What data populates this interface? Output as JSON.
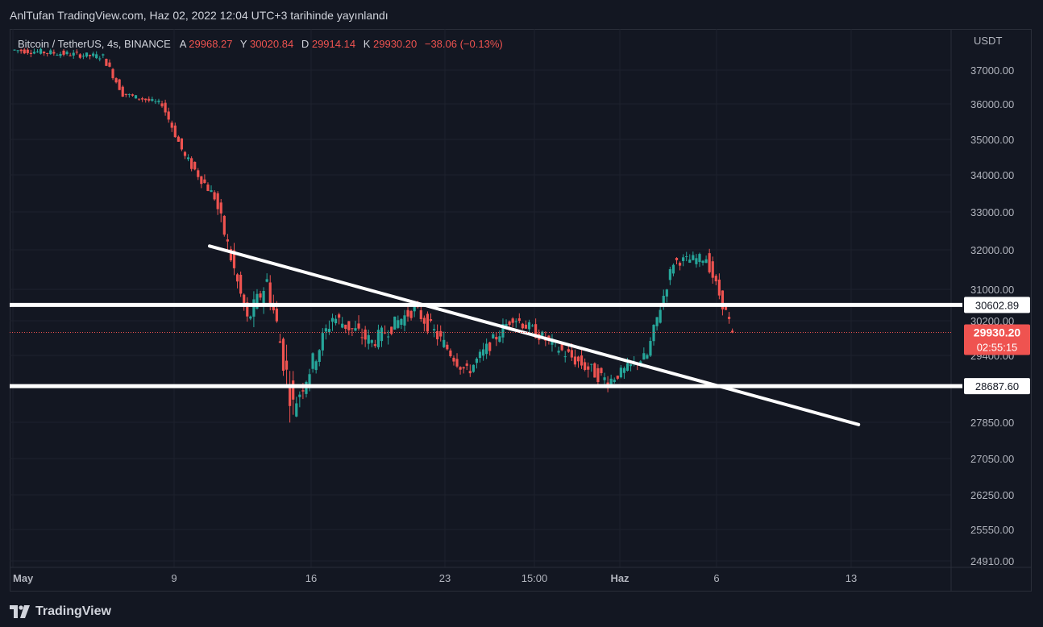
{
  "header": {
    "text": "AnlTufan TradingView.com, Haz 02, 2022 12:04 UTC+3 tarihinde yayınlandı"
  },
  "legend": {
    "symbol": "Bitcoin / TetherUS, 4s, BINANCE",
    "open_label": "A",
    "open": "29968.27",
    "high_label": "Y",
    "high": "30020.84",
    "low_label": "D",
    "low": "29914.14",
    "close_label": "K",
    "close": "29930.20",
    "change": "−38.06 (−0.13%)"
  },
  "footer": {
    "brand": "TradingView"
  },
  "colors": {
    "background": "#131722",
    "grid": "#1e222d",
    "up": "#26a69a",
    "down": "#ef5350",
    "line": "#ffffff",
    "price_tag": "#ef5350",
    "axis_text": "#b2b5be"
  },
  "chart_data": {
    "type": "candlestick",
    "currency_label": "USDT",
    "y_ticks": [
      "37000.00",
      "36000.00",
      "35000.00",
      "34000.00",
      "33000.00",
      "32000.00",
      "31000.00",
      "30200.00",
      "29400.00",
      "27850.00",
      "27050.00",
      "26250.00",
      "25550.00",
      "24910.00"
    ],
    "x_ticks": [
      "May",
      "9",
      "16",
      "23",
      "15:00",
      "Haz",
      "6",
      "13"
    ],
    "x_ticks_bold": [
      "May",
      "Haz"
    ],
    "horizontal_levels": [
      {
        "label": "30602.89",
        "value": 30602.89
      },
      {
        "label": "28687.60",
        "value": 28687.6
      }
    ],
    "trendline": {
      "start": {
        "date": "2022-05-11",
        "price": 32100
      },
      "end": {
        "date": "2022-06-13",
        "price": 27800
      }
    },
    "last_price": {
      "label": "29930.20",
      "countdown": "02:55:15"
    },
    "segments": [
      {
        "from": 37600,
        "to": 37400,
        "count": 28,
        "noise": 180
      },
      {
        "from": 37400,
        "to": 36300,
        "count": 6,
        "noise": 200
      },
      {
        "from": 36300,
        "to": 36000,
        "count": 12,
        "noise": 150
      },
      {
        "from": 36000,
        "to": 34500,
        "count": 7,
        "noise": 220
      },
      {
        "from": 34500,
        "to": 33400,
        "count": 9,
        "noise": 280
      },
      {
        "from": 33400,
        "to": 30200,
        "count": 10,
        "noise": 450
      },
      {
        "from": 30200,
        "to": 31200,
        "count": 6,
        "noise": 500
      },
      {
        "from": 31200,
        "to": 28200,
        "count": 8,
        "noise": 700
      },
      {
        "from": 28200,
        "to": 30300,
        "count": 12,
        "noise": 450
      },
      {
        "from": 30300,
        "to": 29700,
        "count": 12,
        "noise": 400
      },
      {
        "from": 29700,
        "to": 30500,
        "count": 13,
        "noise": 350
      },
      {
        "from": 30500,
        "to": 29000,
        "count": 16,
        "noise": 350
      },
      {
        "from": 29000,
        "to": 30300,
        "count": 14,
        "noise": 300
      },
      {
        "from": 30300,
        "to": 29500,
        "count": 15,
        "noise": 300
      },
      {
        "from": 29500,
        "to": 28800,
        "count": 14,
        "noise": 350
      },
      {
        "from": 28800,
        "to": 29400,
        "count": 12,
        "noise": 250
      },
      {
        "from": 29400,
        "to": 31700,
        "count": 8,
        "noise": 300
      },
      {
        "from": 31700,
        "to": 31800,
        "count": 10,
        "noise": 250
      },
      {
        "from": 31800,
        "to": 29930,
        "count": 8,
        "noise": 300
      }
    ]
  }
}
